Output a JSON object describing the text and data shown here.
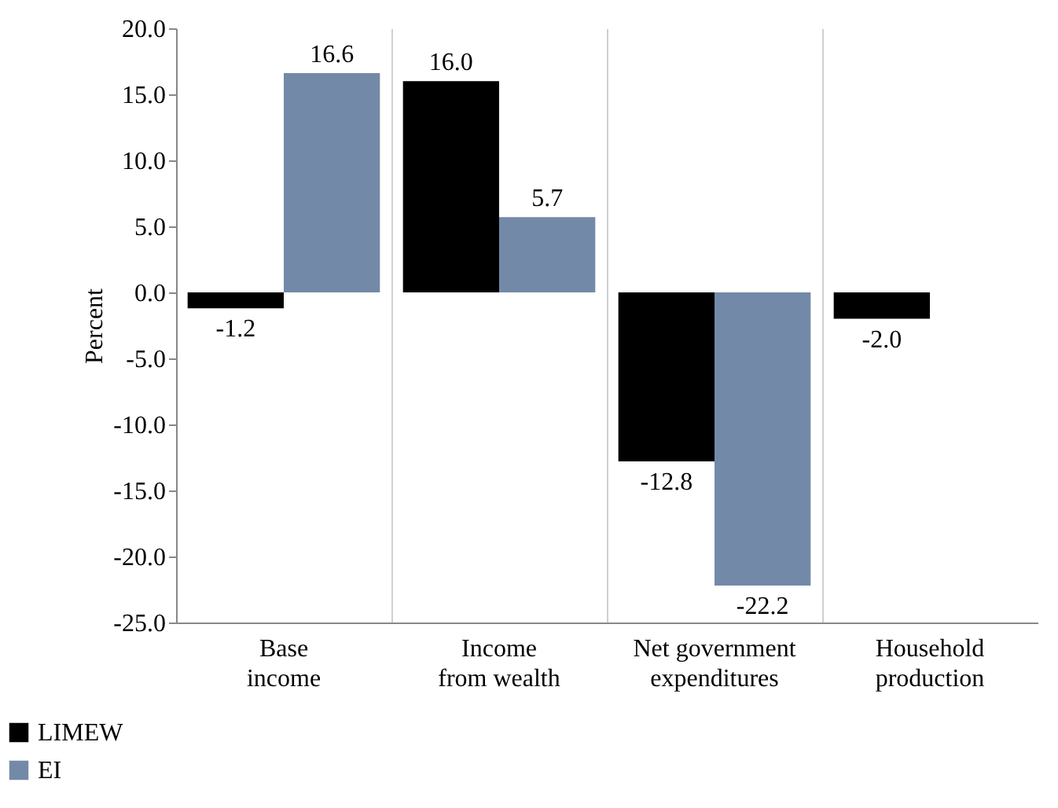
{
  "chart_data": {
    "type": "bar",
    "ylabel": "Percent",
    "categories": [
      "Base\nincome",
      "Income\nfrom wealth",
      "Net government\nexpenditures",
      "Household\nproduction"
    ],
    "series": [
      {
        "name": "LIMEW",
        "color": "#000000",
        "values": [
          -1.2,
          16.0,
          -12.8,
          -2.0
        ],
        "value_labels": [
          "-1.2",
          "16.0",
          "-12.8",
          "-2.0"
        ]
      },
      {
        "name": "EI",
        "color": "#7389a8",
        "values": [
          16.6,
          5.7,
          -22.2,
          null
        ],
        "value_labels": [
          "16.6",
          "5.7",
          "-22.2",
          null
        ]
      }
    ],
    "ylim": [
      -25,
      20
    ],
    "yticks": [
      {
        "value": -25,
        "label": "-25.0"
      },
      {
        "value": -20,
        "label": "-20.0"
      },
      {
        "value": -15,
        "label": "-15.0"
      },
      {
        "value": -10,
        "label": "-10.0"
      },
      {
        "value": -5,
        "label": "-5.0"
      },
      {
        "value": 0,
        "label": "0.0"
      },
      {
        "value": 5,
        "label": "5.0"
      },
      {
        "value": 10,
        "label": "10.0"
      },
      {
        "value": 15,
        "label": "15.0"
      },
      {
        "value": 20,
        "label": "20.0"
      }
    ],
    "grid": "x",
    "legend": "bottom left"
  }
}
